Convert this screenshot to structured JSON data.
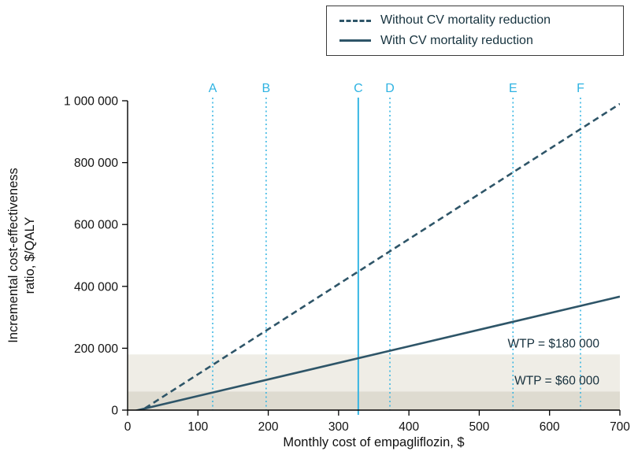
{
  "chart_data": {
    "type": "line",
    "title": "",
    "xlabel": "Monthly cost of empagliflozin, $",
    "ylabel_lines": [
      "Incremental cost-effectiveness",
      "ratio, $/QALY"
    ],
    "xlim": [
      0,
      700
    ],
    "ylim": [
      0,
      1000000
    ],
    "x_ticks": [
      0,
      100,
      200,
      300,
      400,
      500,
      600,
      700
    ],
    "x_tick_labels": [
      "0",
      "100",
      "200",
      "300",
      "400",
      "500",
      "600",
      "700"
    ],
    "y_ticks": [
      0,
      200000,
      400000,
      600000,
      800000,
      1000000
    ],
    "y_tick_labels": [
      "0",
      "200 000",
      "400 000",
      "600 000",
      "800 000",
      "1 000 000"
    ],
    "grid": false,
    "legend_position": "top-right",
    "axis_color": "#000000",
    "tick_label_color": "#111111",
    "series": [
      {
        "name": "Without CV mortality reduction",
        "style": "dashed",
        "color": "#2e5568",
        "points": [
          [
            0,
            -30000
          ],
          [
            700,
            990000
          ]
        ]
      },
      {
        "name": "With CV mortality reduction",
        "style": "solid",
        "color": "#2e5568",
        "points": [
          [
            0,
            -8000
          ],
          [
            700,
            367000
          ]
        ]
      }
    ],
    "wtp_bands": [
      {
        "label": "WTP = $180 000",
        "value": 180000,
        "color": "#efede6"
      },
      {
        "label": "WTP = $60 000",
        "value": 60000,
        "color": "#dedbd0"
      }
    ],
    "wtp_label_color": "#16303d",
    "price_markers": [
      {
        "label": "A",
        "x": 121,
        "style": "dotted"
      },
      {
        "label": "B",
        "x": 197,
        "style": "dotted"
      },
      {
        "label": "C",
        "x": 328,
        "style": "solid"
      },
      {
        "label": "D",
        "x": 373,
        "style": "dotted"
      },
      {
        "label": "E",
        "x": 548,
        "style": "dotted"
      },
      {
        "label": "F",
        "x": 644,
        "style": "dotted"
      }
    ],
    "marker_color": "#2fb3e2"
  }
}
